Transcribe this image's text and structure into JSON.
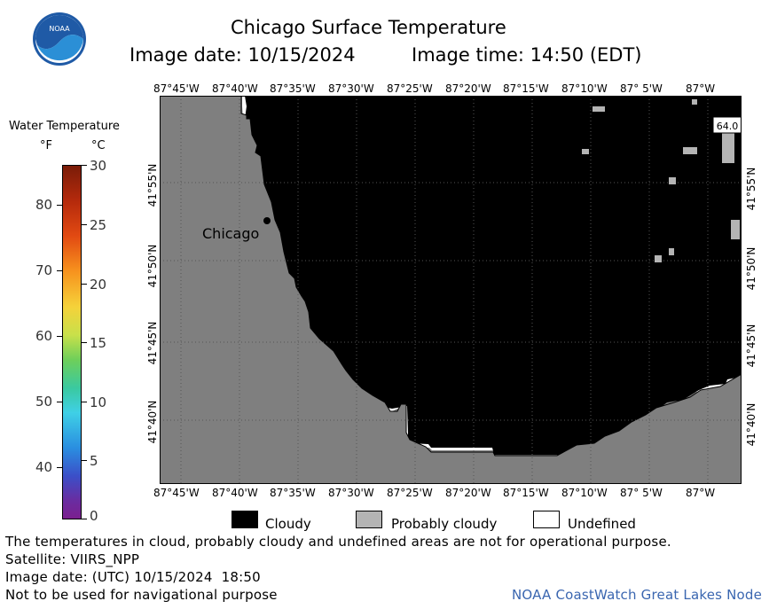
{
  "header": {
    "title": "Chicago Surface Temperature",
    "date_label": "Image date: 10/15/2024",
    "time_label": "Image time: 14:50 (EDT)"
  },
  "colorbar": {
    "title": "Water Temperature",
    "unit_f": "°F",
    "unit_c": "°C",
    "f_ticks": [
      "80",
      "70",
      "60",
      "50",
      "40"
    ],
    "c_ticks": [
      "30",
      "25",
      "20",
      "15",
      "10",
      "5",
      "0"
    ]
  },
  "map": {
    "lon_labels": [
      "87°45'W",
      "87°40'W",
      "87°35'W",
      "87°30'W",
      "87°25'W",
      "87°20'W",
      "87°15'W",
      "87°10'W",
      "87° 5'W",
      "87°W"
    ],
    "lat_labels": [
      "41°55'N",
      "41°50'N",
      "41°45'N",
      "41°40'N"
    ],
    "city_label": "Chicago",
    "sample_value": "64.0",
    "colors": {
      "land": "#7f7f7f",
      "cloud": "#000000",
      "undefined": "#ffffff",
      "grid": "#555555"
    }
  },
  "legend": {
    "cloudy": "Cloudy",
    "probably_cloudy": "Probably cloudy",
    "undefined": "Undefined"
  },
  "footer": {
    "note": "The temperatures in cloud, probably cloudy and undefined areas are not for operational purpose.",
    "satellite": "Satellite: VIIRS_NPP",
    "utc_date": "Image date: (UTC) 10/15/2024  18:50",
    "nav_warning": "Not to be used for navigational purpose",
    "credit": "NOAA CoastWatch Great Lakes Node"
  }
}
